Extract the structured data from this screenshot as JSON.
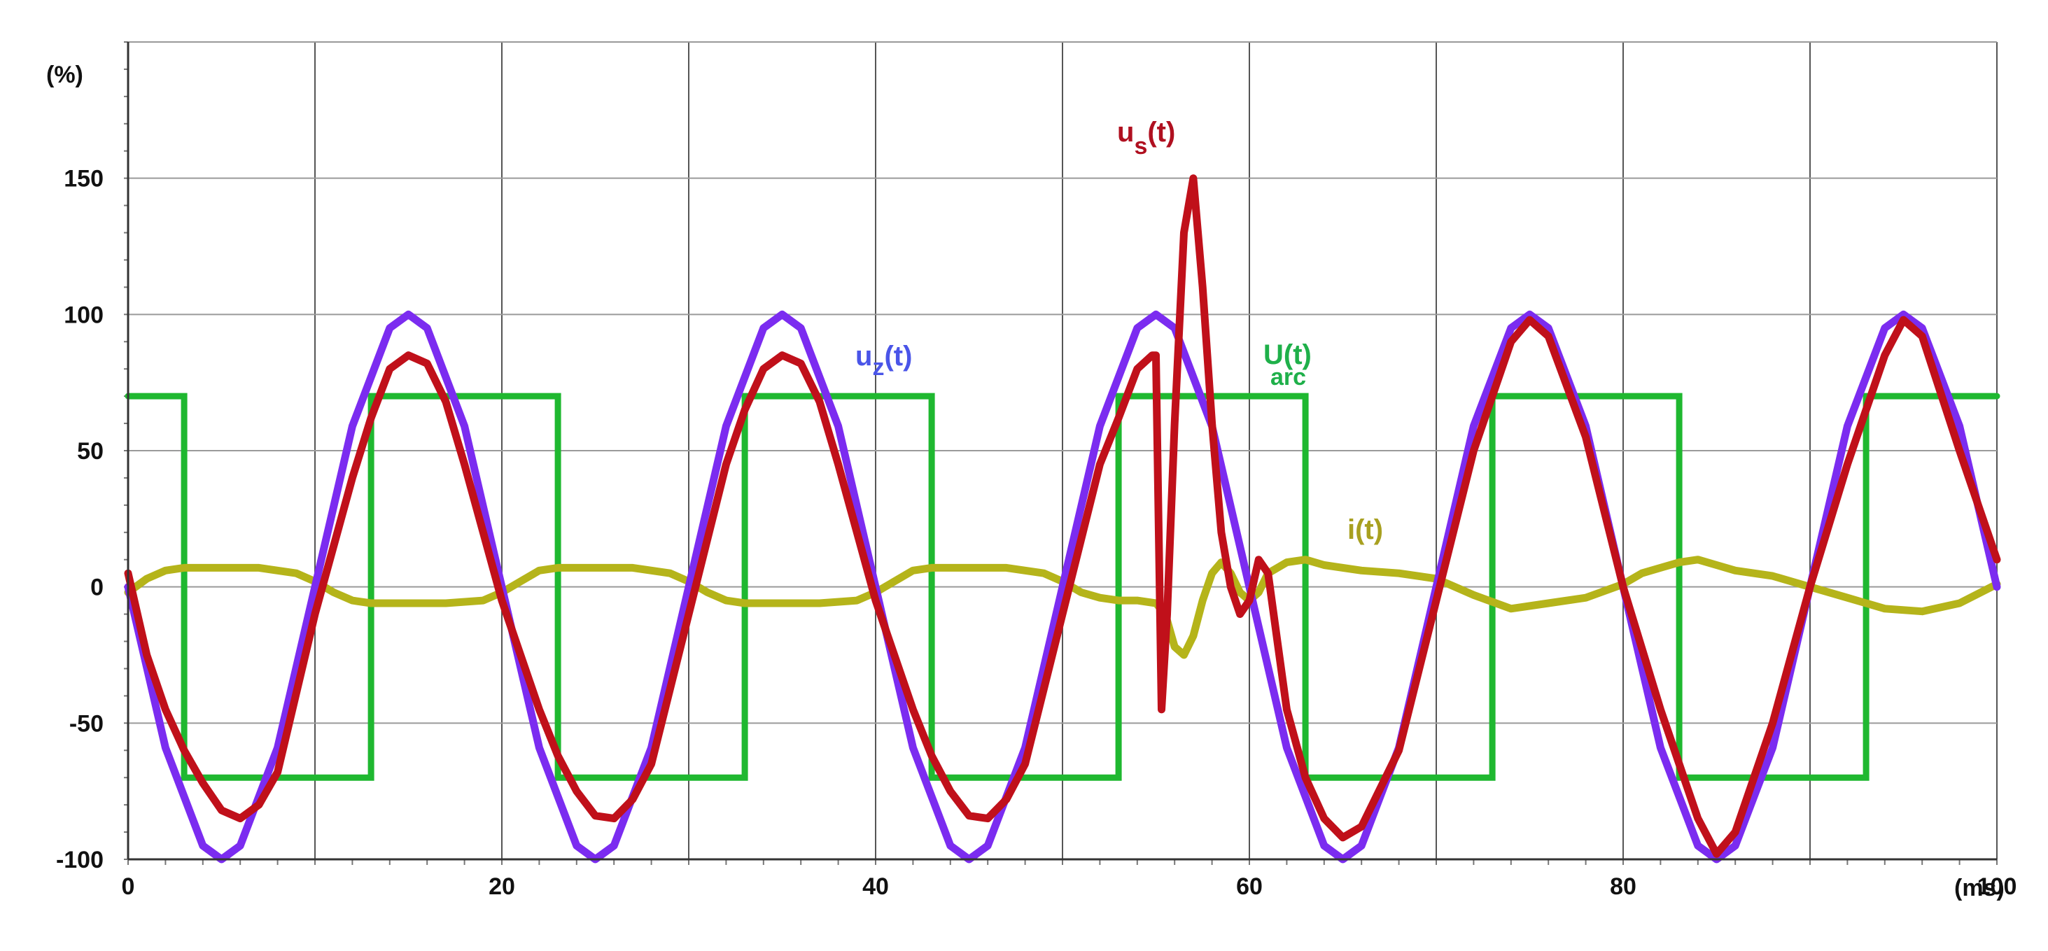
{
  "chart_data": {
    "type": "line",
    "title": "",
    "xlabel": "",
    "ylabel": "",
    "x_unit": "(ms)",
    "y_unit": "(%)",
    "xlim": [
      0,
      100
    ],
    "ylim": [
      -100,
      200
    ],
    "x_ticks": [
      0,
      20,
      40,
      60,
      80,
      100
    ],
    "y_ticks": [
      -100,
      -50,
      0,
      50,
      100,
      150
    ],
    "x_gridlines": [
      0,
      10,
      20,
      30,
      40,
      50,
      60,
      70,
      80,
      90,
      100
    ],
    "y_gridlines": [
      -100,
      -50,
      0,
      50,
      100,
      150,
      200
    ],
    "grid": true,
    "series": [
      {
        "name": "u_z(t)",
        "label_main": "u",
        "label_sub": "z",
        "label_suffix": "(t)",
        "color": "#7b2cf0",
        "x": [
          0,
          2,
          4,
          5,
          6,
          8,
          10,
          12,
          14,
          15,
          16,
          18,
          20,
          22,
          24,
          25,
          26,
          28,
          30,
          32,
          34,
          35,
          36,
          38,
          40,
          42,
          44,
          45,
          46,
          48,
          50,
          52,
          54,
          55,
          56,
          58,
          60,
          62,
          64,
          65,
          66,
          68,
          70,
          72,
          74,
          75,
          76,
          78,
          80,
          82,
          84,
          85,
          86,
          88,
          90,
          92,
          94,
          95,
          96,
          98,
          100
        ],
        "y": [
          0,
          -59,
          -95,
          -100,
          -95,
          -59,
          0,
          59,
          95,
          100,
          95,
          59,
          0,
          -59,
          -95,
          -100,
          -95,
          -59,
          0,
          59,
          95,
          100,
          95,
          59,
          0,
          -59,
          -95,
          -100,
          -95,
          -59,
          0,
          59,
          95,
          100,
          95,
          59,
          0,
          -59,
          -95,
          -100,
          -95,
          -59,
          0,
          59,
          95,
          100,
          95,
          59,
          0,
          -59,
          -95,
          -100,
          -95,
          -59,
          0,
          59,
          95,
          100,
          95,
          59,
          0
        ]
      },
      {
        "name": "u_s(t)",
        "label_main": "u",
        "label_sub": "s",
        "label_suffix": "(t)",
        "color": "#c0101a",
        "x": [
          0,
          1,
          2,
          3,
          4,
          5,
          6,
          7,
          8,
          10,
          12,
          13,
          14,
          15,
          16,
          17,
          18,
          20,
          22,
          23,
          24,
          25,
          26,
          27,
          28,
          30,
          32,
          33,
          34,
          35,
          36,
          37,
          38,
          40,
          42,
          43,
          44,
          45,
          46,
          47,
          48,
          50,
          52,
          53,
          54,
          54.8,
          55,
          55.3,
          55.6,
          56,
          56.5,
          57,
          57.5,
          58,
          58.5,
          59,
          59.5,
          60,
          60.5,
          61,
          61.5,
          62,
          63,
          64,
          65,
          66,
          68,
          70,
          72,
          74,
          75,
          76,
          78,
          80,
          82,
          84,
          85,
          86,
          88,
          90,
          92,
          94,
          95,
          96,
          98,
          100
        ],
        "y": [
          5,
          -25,
          -45,
          -60,
          -72,
          -82,
          -85,
          -80,
          -68,
          -10,
          40,
          62,
          80,
          85,
          82,
          68,
          45,
          -5,
          -45,
          -62,
          -75,
          -84,
          -85,
          -78,
          -65,
          -10,
          45,
          65,
          80,
          85,
          82,
          68,
          45,
          -5,
          -45,
          -62,
          -75,
          -84,
          -85,
          -78,
          -65,
          -10,
          45,
          62,
          80,
          85,
          85,
          -45,
          -10,
          60,
          130,
          150,
          110,
          60,
          20,
          0,
          -10,
          -5,
          10,
          5,
          -20,
          -45,
          -70,
          -85,
          -92,
          -88,
          -60,
          -5,
          50,
          90,
          98,
          92,
          55,
          0,
          -45,
          -85,
          -98,
          -90,
          -50,
          0,
          45,
          85,
          98,
          92,
          50,
          10
        ]
      },
      {
        "name": "U(t)arc",
        "label_main": "U(t)",
        "label_sub": "arc",
        "label_suffix": "",
        "color": "#1fb830",
        "step": true,
        "x": [
          0,
          3,
          3,
          13,
          13,
          23,
          23,
          33,
          33,
          43,
          43,
          53,
          53,
          63,
          63,
          73,
          73,
          83,
          83,
          93,
          93,
          100
        ],
        "y": [
          70,
          70,
          -70,
          -70,
          70,
          70,
          -70,
          -70,
          70,
          70,
          -70,
          -70,
          70,
          70,
          -70,
          -70,
          70,
          70,
          -70,
          -70,
          70,
          70
        ]
      },
      {
        "name": "i(t)",
        "label_main": "i(t)",
        "label_sub": "",
        "label_suffix": "",
        "color": "#b5b41a",
        "x": [
          0,
          1,
          2,
          3,
          5,
          7,
          9,
          10,
          11,
          12,
          13,
          15,
          17,
          19,
          20,
          21,
          22,
          23,
          25,
          27,
          29,
          30,
          31,
          32,
          33,
          35,
          37,
          39,
          40,
          41,
          42,
          43,
          45,
          47,
          49,
          50,
          51,
          52,
          53,
          54,
          55,
          55.5,
          56,
          56.5,
          57,
          57.5,
          58,
          58.5,
          59,
          59.5,
          60,
          60.5,
          61,
          62,
          63,
          64,
          66,
          68,
          70,
          72,
          74,
          76,
          78,
          80,
          81,
          82,
          83,
          84,
          85,
          86,
          88,
          90,
          92,
          94,
          96,
          98,
          100
        ],
        "y": [
          -2,
          3,
          6,
          7,
          7,
          7,
          5,
          2,
          -2,
          -5,
          -6,
          -6,
          -6,
          -5,
          -2,
          2,
          6,
          7,
          7,
          7,
          5,
          2,
          -2,
          -5,
          -6,
          -6,
          -6,
          -5,
          -2,
          2,
          6,
          7,
          7,
          7,
          5,
          2,
          -2,
          -4,
          -5,
          -5,
          -6,
          -10,
          -22,
          -25,
          -18,
          -5,
          5,
          9,
          5,
          -2,
          -5,
          -2,
          5,
          9,
          10,
          8,
          6,
          5,
          3,
          -3,
          -8,
          -6,
          -4,
          1,
          5,
          7,
          9,
          10,
          8,
          6,
          4,
          0,
          -4,
          -8,
          -9,
          -6,
          1
        ]
      }
    ]
  }
}
